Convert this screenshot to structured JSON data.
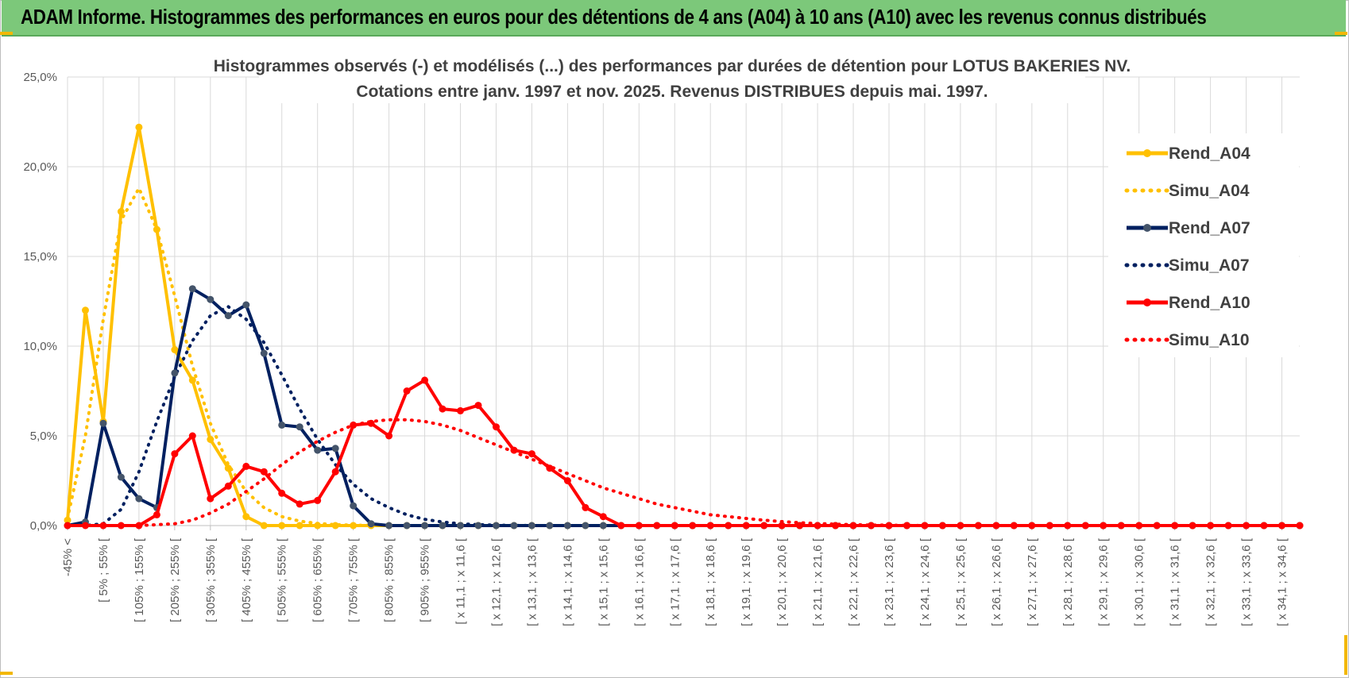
{
  "header": {
    "title": "ADAM Informe. Histogrammes des performances en euros pour des détentions de 4 ans (A04) à 10 ans (A10) avec les revenus connus distribués"
  },
  "colors": {
    "header_bg": "#7cc87a",
    "a04": "#ffc000",
    "a07": "#002060",
    "a10": "#ff0000",
    "grid": "#d9d9d9",
    "corner_accent": "#f2b705"
  },
  "chart_data": {
    "type": "line",
    "title_line1": "Histogrammes observés (-) et modélisés (...) des performances par durées de détention pour LOTUS BAKERIES NV.",
    "title_line2": "Cotations entre janv. 1997 et nov. 2025. Revenus DISTRIBUES depuis mai. 1997.",
    "xlabel": "",
    "ylabel": "",
    "ylim": [
      0,
      25
    ],
    "ytick_labels": [
      "0,0%",
      "5,0%",
      "10,0%",
      "15,0%",
      "20,0%",
      "25,0%"
    ],
    "grid": true,
    "legend_position": "right",
    "x_labels": [
      "-45% <",
      "[ 5% ; 55% [",
      "[ 105% ; 155% [",
      "[ 205% ; 255% [",
      "[ 305% ; 355% [",
      "[ 405% ; 455% [",
      "[ 505% ; 555% [",
      "[ 605% ; 655% [",
      "[ 705% ; 755% [",
      "[ 805% ; 855% [",
      "[ 905% ; 955% [",
      "[ x 11,1 ; x 11,6 [",
      "[ x 12,1 ; x 12,6 [",
      "[ x 13,1 ; x 13,6 [",
      "[ x 14,1 ; x 14,6 [",
      "[ x 15,1 ; x 15,6 [",
      "[ x 16,1 ; x 16,6 [",
      "[ x 17,1 ; x 17,6 [",
      "[ x 18,1 ; x 18,6 [",
      "[ x 19,1 ; x 19,6 [",
      "[ x 20,1 ; x 20,6 [",
      "[ x 21,1 ; x 21,6 [",
      "[ x 22,1 ; x 22,6 [",
      "[ x 23,1 ; x 23,6 [",
      "[ x 24,1 ; x 24,6 [",
      "[ x 25,1 ; x 25,6 [",
      "[ x 26,1 ; x 26,6 [",
      "[ x 27,1 ; x 27,6 [",
      "[ x 28,1 ; x 28,6 [",
      "[ x 29,1 ; x 29,6 [",
      "[ x 30,1 ; x 30,6 [",
      "[ x 31,1 ; x 31,6 [",
      "[ x 32,1 ; x 32,6 [",
      "[ x 33,1 ; x 33,6 [",
      "[ x 34,1 ; x 34,6 ["
    ],
    "num_bins": 70,
    "series": [
      {
        "name": "Rend_A04",
        "style": "solid",
        "color": "#ffc000",
        "values": [
          0.3,
          12.0,
          5.8,
          17.5,
          22.2,
          16.5,
          9.8,
          8.1,
          4.8,
          3.2,
          0.5,
          0,
          0,
          0,
          0,
          0,
          0,
          0,
          0,
          0,
          0,
          0,
          0,
          0,
          0,
          0,
          0,
          0,
          0,
          0,
          0,
          0,
          0,
          0,
          0,
          0,
          0,
          0,
          0,
          0,
          0,
          0,
          0,
          0,
          0,
          0,
          0,
          0,
          0,
          0,
          0,
          0,
          0,
          0,
          0,
          0,
          0,
          0,
          0,
          0,
          0,
          0,
          0,
          0,
          0,
          0,
          0,
          0,
          0,
          0
        ]
      },
      {
        "name": "Simu_A04",
        "style": "dotted",
        "color": "#ffc000",
        "values": [
          0.4,
          5.0,
          11.5,
          17.0,
          18.8,
          16.5,
          12.8,
          8.9,
          5.7,
          3.4,
          1.9,
          1.0,
          0.5,
          0.25,
          0.12,
          0.05,
          0.02,
          0.01,
          0,
          0,
          0,
          0,
          0,
          0,
          0,
          0,
          0,
          0,
          0,
          0,
          0,
          0,
          0,
          0,
          0,
          0,
          0,
          0,
          0,
          0,
          0,
          0,
          0,
          0,
          0,
          0,
          0,
          0,
          0,
          0,
          0,
          0,
          0,
          0,
          0,
          0,
          0,
          0,
          0,
          0,
          0,
          0,
          0,
          0,
          0,
          0,
          0,
          0,
          0,
          0
        ]
      },
      {
        "name": "Rend_A07",
        "style": "solid",
        "color": "#002060",
        "values": [
          0,
          0.2,
          5.7,
          2.7,
          1.5,
          1.0,
          8.5,
          13.2,
          12.6,
          11.7,
          12.3,
          9.6,
          5.6,
          5.5,
          4.2,
          4.3,
          1.1,
          0.1,
          0,
          0,
          0,
          0,
          0,
          0,
          0,
          0,
          0,
          0,
          0,
          0,
          0,
          0,
          0,
          0,
          0,
          0,
          0,
          0,
          0,
          0,
          0,
          0,
          0,
          0,
          0,
          0,
          0,
          0,
          0,
          0,
          0,
          0,
          0,
          0,
          0,
          0,
          0,
          0,
          0,
          0,
          0,
          0,
          0,
          0,
          0,
          0,
          0,
          0,
          0,
          0
        ]
      },
      {
        "name": "Simu_A07",
        "style": "dotted",
        "color": "#002060",
        "values": [
          0,
          0,
          0.1,
          0.9,
          3.0,
          5.8,
          8.3,
          10.3,
          11.7,
          12.2,
          11.5,
          10.2,
          8.4,
          6.5,
          4.8,
          3.4,
          2.3,
          1.5,
          1.0,
          0.6,
          0.35,
          0.2,
          0.1,
          0.05,
          0.02,
          0.01,
          0,
          0,
          0,
          0,
          0,
          0,
          0,
          0,
          0,
          0,
          0,
          0,
          0,
          0,
          0,
          0,
          0,
          0,
          0,
          0,
          0,
          0,
          0,
          0,
          0,
          0,
          0,
          0,
          0,
          0,
          0,
          0,
          0,
          0,
          0,
          0,
          0,
          0,
          0,
          0,
          0,
          0,
          0,
          0
        ]
      },
      {
        "name": "Rend_A10",
        "style": "solid",
        "color": "#ff0000",
        "values": [
          0,
          0,
          0,
          0,
          0,
          0.6,
          4.0,
          5.0,
          1.5,
          2.2,
          3.3,
          3.0,
          1.8,
          1.2,
          1.4,
          3.0,
          5.6,
          5.7,
          5.0,
          7.5,
          8.1,
          6.5,
          6.4,
          6.7,
          5.5,
          4.2,
          4.0,
          3.2,
          2.5,
          1.0,
          0.5,
          0,
          0,
          0,
          0,
          0,
          0,
          0,
          0,
          0,
          0,
          0,
          0,
          0,
          0,
          0,
          0,
          0,
          0,
          0,
          0,
          0,
          0,
          0,
          0,
          0,
          0,
          0,
          0,
          0,
          0,
          0,
          0,
          0,
          0,
          0,
          0,
          0,
          0,
          0
        ]
      },
      {
        "name": "Simu_A10",
        "style": "dotted",
        "color": "#ff0000",
        "values": [
          0,
          0,
          0,
          0,
          0,
          0.05,
          0.1,
          0.3,
          0.7,
          1.2,
          1.9,
          2.6,
          3.4,
          4.1,
          4.7,
          5.2,
          5.6,
          5.8,
          5.9,
          5.9,
          5.8,
          5.6,
          5.3,
          4.9,
          4.5,
          4.1,
          3.7,
          3.3,
          2.9,
          2.5,
          2.1,
          1.8,
          1.5,
          1.2,
          1.0,
          0.8,
          0.6,
          0.5,
          0.4,
          0.3,
          0.22,
          0.16,
          0.11,
          0.08,
          0.05,
          0.03,
          0.02,
          0.01,
          0,
          0,
          0,
          0,
          0,
          0,
          0,
          0,
          0,
          0,
          0,
          0,
          0,
          0,
          0,
          0,
          0,
          0,
          0,
          0,
          0,
          0
        ]
      }
    ]
  }
}
